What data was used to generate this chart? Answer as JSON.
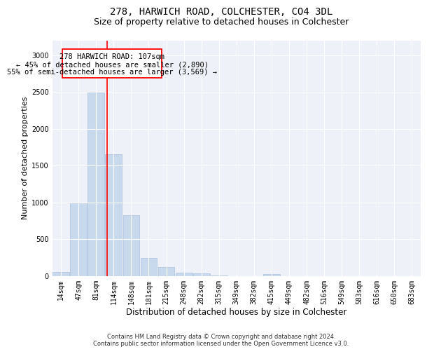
{
  "title1": "278, HARWICH ROAD, COLCHESTER, CO4 3DL",
  "title2": "Size of property relative to detached houses in Colchester",
  "xlabel": "Distribution of detached houses by size in Colchester",
  "ylabel": "Number of detached properties",
  "bar_color": "#c8d9ee",
  "bar_edge_color": "#a8c0de",
  "background_color": "#eef2f8",
  "grid_color": "#ffffff",
  "categories": [
    "14sqm",
    "47sqm",
    "81sqm",
    "114sqm",
    "148sqm",
    "181sqm",
    "215sqm",
    "248sqm",
    "282sqm",
    "315sqm",
    "349sqm",
    "382sqm",
    "415sqm",
    "449sqm",
    "482sqm",
    "516sqm",
    "549sqm",
    "583sqm",
    "616sqm",
    "650sqm",
    "683sqm"
  ],
  "values": [
    55,
    1000,
    2490,
    1650,
    830,
    250,
    120,
    50,
    40,
    5,
    0,
    0,
    30,
    0,
    0,
    0,
    0,
    0,
    0,
    0,
    0
  ],
  "red_line_x": 2.63,
  "annotation_line1": "278 HARWICH ROAD: 107sqm",
  "annotation_line2": "← 45% of detached houses are smaller (2,890)",
  "annotation_line3": "55% of semi-detached houses are larger (3,569) →",
  "ylim": [
    0,
    3200
  ],
  "yticks": [
    0,
    500,
    1000,
    1500,
    2000,
    2500,
    3000
  ],
  "footer": "Contains HM Land Registry data © Crown copyright and database right 2024.\nContains public sector information licensed under the Open Government Licence v3.0.",
  "title_fontsize": 10,
  "subtitle_fontsize": 9,
  "tick_fontsize": 7,
  "ylabel_fontsize": 8,
  "xlabel_fontsize": 8.5,
  "footer_fontsize": 6
}
